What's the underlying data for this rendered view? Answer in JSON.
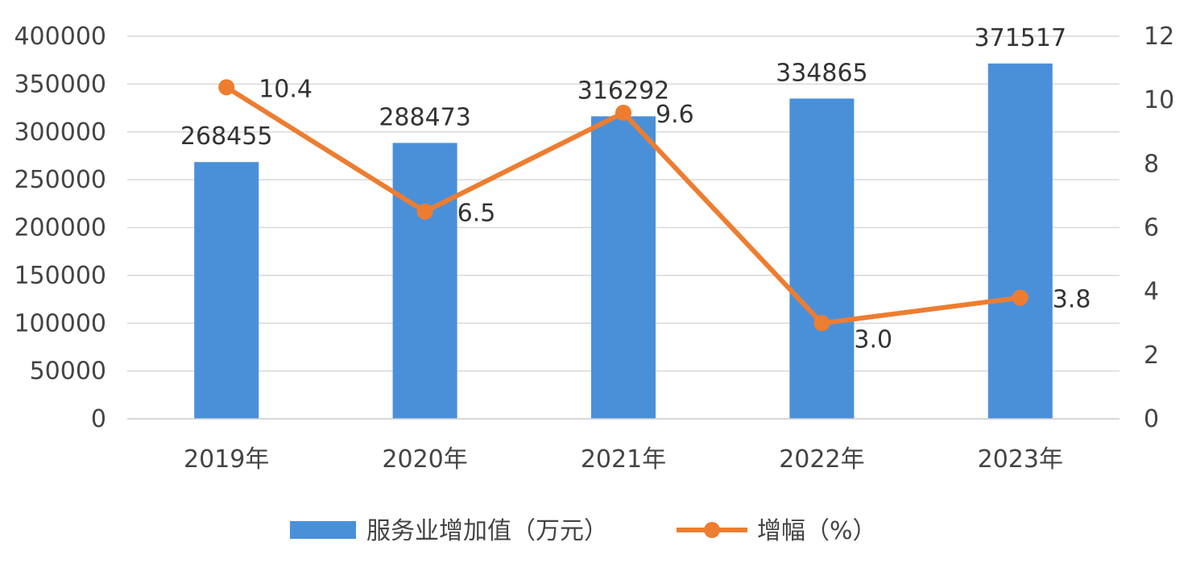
{
  "chart_data": {
    "type": "bar+line",
    "categories": [
      "2019年",
      "2020年",
      "2021年",
      "2022年",
      "2023年"
    ],
    "series": [
      {
        "name": "服务业增加值（万元）",
        "type": "bar",
        "axis": "left",
        "values": [
          268455,
          288473,
          316292,
          334865,
          371517
        ],
        "labels": [
          "268455",
          "288473",
          "316292",
          "334865",
          "371517"
        ],
        "color": "#4a90d9"
      },
      {
        "name": "增幅（%）",
        "type": "line",
        "axis": "right",
        "values": [
          10.4,
          6.5,
          9.6,
          3.0,
          3.8
        ],
        "labels": [
          "10.4",
          "6.5",
          "9.6",
          "3.0",
          "3.8"
        ],
        "color": "#ed7d31"
      }
    ],
    "y_left": {
      "ylim": [
        0,
        400000
      ],
      "ticks": [
        "0",
        "50000",
        "100000",
        "150000",
        "200000",
        "250000",
        "300000",
        "350000",
        "400000"
      ]
    },
    "y_right": {
      "ylim": [
        0,
        12
      ],
      "ticks": [
        "0",
        "2",
        "4",
        "6",
        "8",
        "10",
        "12"
      ]
    },
    "grid": true,
    "legend_position": "bottom"
  }
}
